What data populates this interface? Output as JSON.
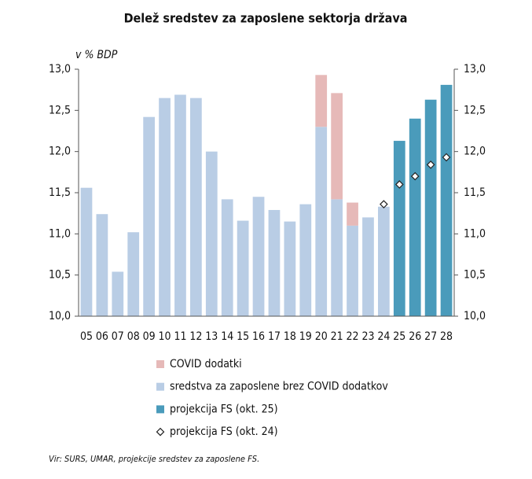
{
  "chart_data": {
    "type": "bar",
    "stacked": true,
    "title": "Delež sredstev za zaposlene sektorja država",
    "y_label": "v % BDP",
    "source": "Vir: SURS, UMAR, projekcije sredstev za zaposlene FS.",
    "categories": [
      "05",
      "06",
      "07",
      "08",
      "09",
      "10",
      "11",
      "12",
      "13",
      "14",
      "15",
      "16",
      "17",
      "18",
      "19",
      "20",
      "21",
      "22",
      "23",
      "24",
      "25",
      "26",
      "27",
      "28"
    ],
    "series": [
      {
        "name": "sredstva za zaposlene brez COVID dodatkov",
        "color": "#b9cde5",
        "values": [
          11.56,
          11.24,
          10.54,
          11.02,
          12.42,
          12.65,
          12.69,
          12.65,
          12.0,
          11.42,
          11.16,
          11.45,
          11.29,
          11.15,
          11.36,
          12.3,
          11.42,
          11.1,
          11.2,
          11.33,
          null,
          null,
          null,
          null
        ]
      },
      {
        "name": "COVID dodatki",
        "color": "#e6b9b8",
        "values": [
          null,
          null,
          null,
          null,
          null,
          null,
          null,
          null,
          null,
          null,
          null,
          null,
          null,
          null,
          null,
          0.63,
          1.29,
          0.28,
          null,
          null,
          null,
          null,
          null,
          null
        ]
      },
      {
        "name": "projekcija FS (okt. 25)",
        "color": "#4a9bbb",
        "values": [
          null,
          null,
          null,
          null,
          null,
          null,
          null,
          null,
          null,
          null,
          null,
          null,
          null,
          null,
          null,
          null,
          null,
          null,
          null,
          null,
          12.13,
          12.4,
          12.63,
          12.81
        ]
      },
      {
        "name": "projekcija FS (okt. 24)",
        "color": "#ffffff",
        "marker": "diamond",
        "values": [
          null,
          null,
          null,
          null,
          null,
          null,
          null,
          null,
          null,
          null,
          null,
          null,
          null,
          null,
          null,
          null,
          null,
          null,
          null,
          11.36,
          11.6,
          11.7,
          11.84,
          11.93
        ]
      }
    ],
    "legend_order": [
      1,
      0,
      2,
      3
    ],
    "ylim": [
      10,
      13
    ],
    "yticks": [
      {
        "value": 10,
        "label": "10,0"
      },
      {
        "value": 10.5,
        "label": "10,5"
      },
      {
        "value": 11,
        "label": "11,0"
      },
      {
        "value": 11.5,
        "label": "11,5"
      },
      {
        "value": 12,
        "label": "12,0"
      },
      {
        "value": 12.5,
        "label": "12,5"
      },
      {
        "value": 13,
        "label": "13,0"
      }
    ],
    "y2lim": [
      10,
      13
    ],
    "y2ticks": [
      {
        "value": 10,
        "label": "10,0"
      },
      {
        "value": 10.5,
        "label": "10,5"
      },
      {
        "value": 11,
        "label": "11,0"
      },
      {
        "value": 11.5,
        "label": "11,5"
      },
      {
        "value": 12,
        "label": "12,0"
      },
      {
        "value": 12.5,
        "label": "12,5"
      },
      {
        "value": 13,
        "label": "13,0"
      }
    ]
  }
}
